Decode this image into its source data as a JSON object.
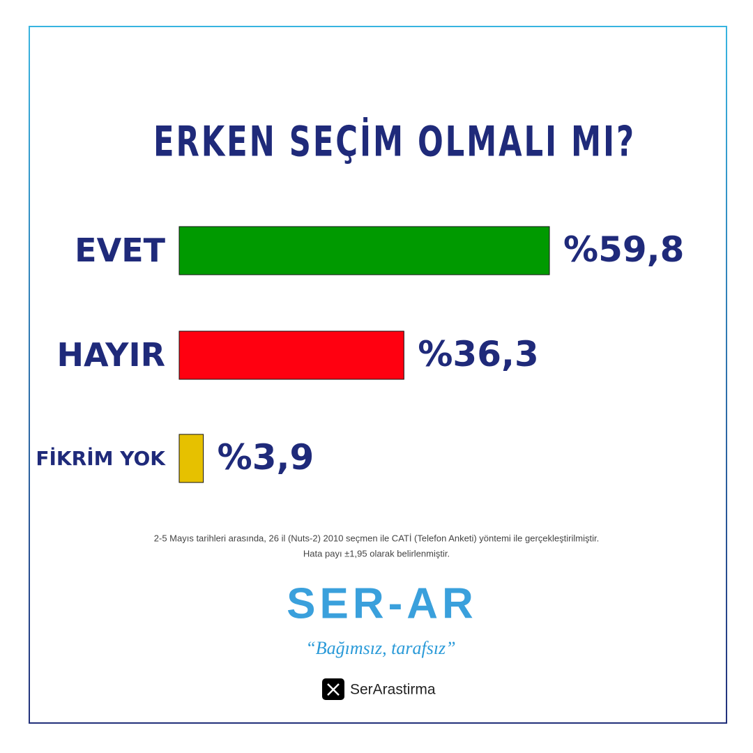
{
  "chart_data": {
    "type": "bar",
    "orientation": "horizontal",
    "title": "ERKEN SEÇİM OLMALI MI?",
    "categories": [
      "EVET",
      "HAYIR",
      "FİKRİM YOK"
    ],
    "values": [
      59.8,
      36.3,
      3.9
    ],
    "value_labels": [
      "%59,8",
      "%36,3",
      "%3,9"
    ],
    "colors": [
      "#009a00",
      "#ff0010",
      "#e6c100"
    ],
    "notes": [
      "2-5 Mayıs tarihleri arasında, 26 il (Nuts-2) 2010 seçmen ile CATİ (Telefon Anketi) yöntemi ile gerçekleştirilmiştir.",
      "Hata payı ±1,95 olarak belirlenmiştir."
    ],
    "brand": "SER-AR",
    "tagline": "“Bağımsız, tarafsız”",
    "handle": "SerArastirma"
  }
}
